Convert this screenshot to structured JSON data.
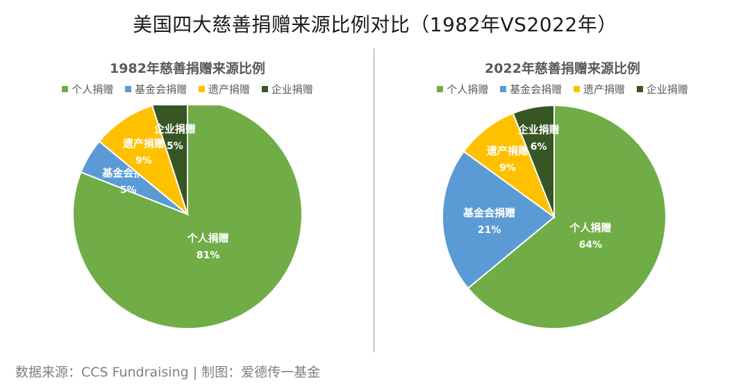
{
  "title": "美国四大慈善捐赠来源比例对比（1982年VS2022年）",
  "footer": {
    "label": "数据来源：CCS Fundraising | 制图：爱德传一基金"
  },
  "colors": {
    "individual": "#70AD47",
    "foundation": "#5B9BD5",
    "bequest": "#FFC000",
    "corporate": "#375623"
  },
  "chart_data": [
    {
      "type": "pie",
      "title": "1982年慈善捐赠来源比例",
      "legend_position": "top",
      "categories": [
        "个人捐赠",
        "基金会捐赠",
        "遗产捐赠",
        "企业捐赠"
      ],
      "values": [
        81,
        5,
        9,
        5
      ],
      "value_labels": [
        "81%",
        "5%",
        "9%",
        "5%"
      ]
    },
    {
      "type": "pie",
      "title": "2022年慈善捐赠来源比例",
      "legend_position": "top",
      "categories": [
        "个人捐赠",
        "基金会捐赠",
        "遗产捐赠",
        "企业捐赠"
      ],
      "values": [
        64,
        21,
        9,
        6
      ],
      "value_labels": [
        "64%",
        "21%",
        "9%",
        "6%"
      ]
    }
  ]
}
